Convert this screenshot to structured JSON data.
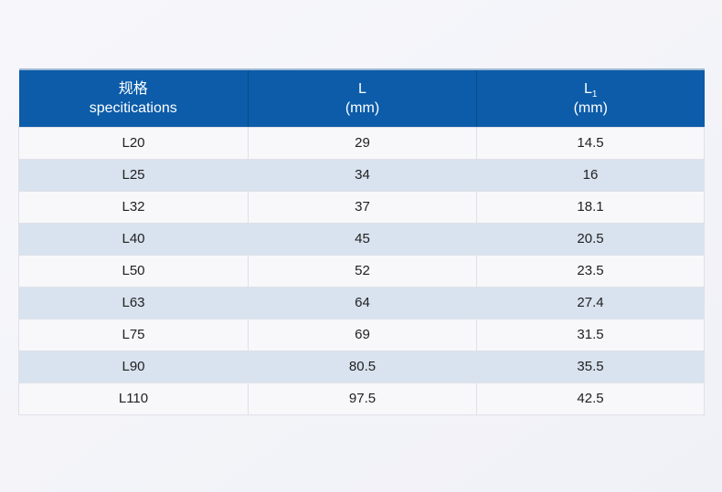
{
  "page": {
    "background_top": "#f7f7fb",
    "background_bottom": "#f0f1f7"
  },
  "colors": {
    "header_bg": "#0c5ca9",
    "header_text": "#ffffff",
    "header_top_border": "#9fb9d2",
    "stripe_bg": "#d9e2ef",
    "row_bg": "#f8f8fb",
    "border": "#dfe1e8",
    "cell_text": "#212121"
  },
  "table": {
    "headers": [
      {
        "line1": "规格",
        "line2": "specitications"
      },
      {
        "line1": "L",
        "line2": "(mm)"
      },
      {
        "line1": "L",
        "subscript": "1",
        "line2": "(mm)"
      }
    ]
  },
  "chart_data": {
    "type": "table",
    "columns": [
      "规格 specitications",
      "L (mm)",
      "L1 (mm)"
    ],
    "rows": [
      [
        "L20",
        "29",
        "14.5"
      ],
      [
        "L25",
        "34",
        "16"
      ],
      [
        "L32",
        "37",
        "18.1"
      ],
      [
        "L40",
        "45",
        "20.5"
      ],
      [
        "L50",
        "52",
        "23.5"
      ],
      [
        "L63",
        "64",
        "27.4"
      ],
      [
        "L75",
        "69",
        "31.5"
      ],
      [
        "L90",
        "80.5",
        "35.5"
      ],
      [
        "L110",
        "97.5",
        "42.5"
      ]
    ]
  }
}
